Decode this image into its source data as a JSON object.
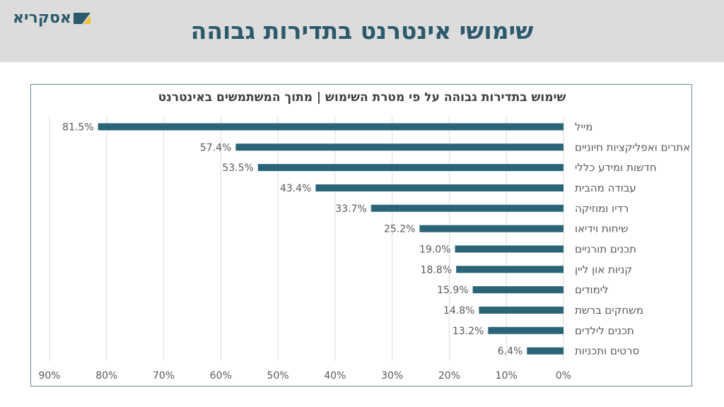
{
  "header": {
    "title": "שימושי אינטרנט בתדירות גבוהה",
    "logo_text": "אסקריא",
    "logo_colors": {
      "dark": "#2c5a6c",
      "accent": "#f2c230"
    },
    "band_color": "#dcdcdc"
  },
  "colors": {
    "bar": "#2a6478",
    "grid": "#dadada",
    "text": "#595959",
    "title": "#2c5a6c"
  },
  "chart_data": {
    "type": "bar",
    "orientation": "horizontal",
    "title": "שימוש בתדירות גבוהה על פי מטרת השימוש | מתוך המשתמשים באינטרנט",
    "categories": [
      "מייל",
      "אתרים ואפליקציות חיוניים",
      "חדשות ומידע כללי",
      "עבודה מהבית",
      "רדיו ומוזיקה",
      "שיחות וידיאו",
      "תכנים תורניים",
      "קניות און ליין",
      "לימודים",
      "משחקים ברשת",
      "תכנים לילדים",
      "סרטים ותכניות"
    ],
    "values": [
      81.5,
      57.4,
      53.5,
      43.4,
      33.7,
      25.2,
      19.0,
      18.8,
      15.9,
      14.8,
      13.2,
      6.4
    ],
    "value_labels": [
      "81.5%",
      "57.4%",
      "53.5%",
      "43.4%",
      "33.7%",
      "25.2%",
      "19.0%",
      "18.8%",
      "15.9%",
      "14.8%",
      "13.2%",
      "6.4%"
    ],
    "xlim": [
      0,
      90
    ],
    "x_direction": "right-to-left",
    "x_ticks": [
      0,
      10,
      20,
      30,
      40,
      50,
      60,
      70,
      80,
      90
    ],
    "x_tick_labels": [
      "0%",
      "10%",
      "20%",
      "30%",
      "40%",
      "50%",
      "60%",
      "70%",
      "80%",
      "90%"
    ],
    "grid": true,
    "legend": "none"
  }
}
